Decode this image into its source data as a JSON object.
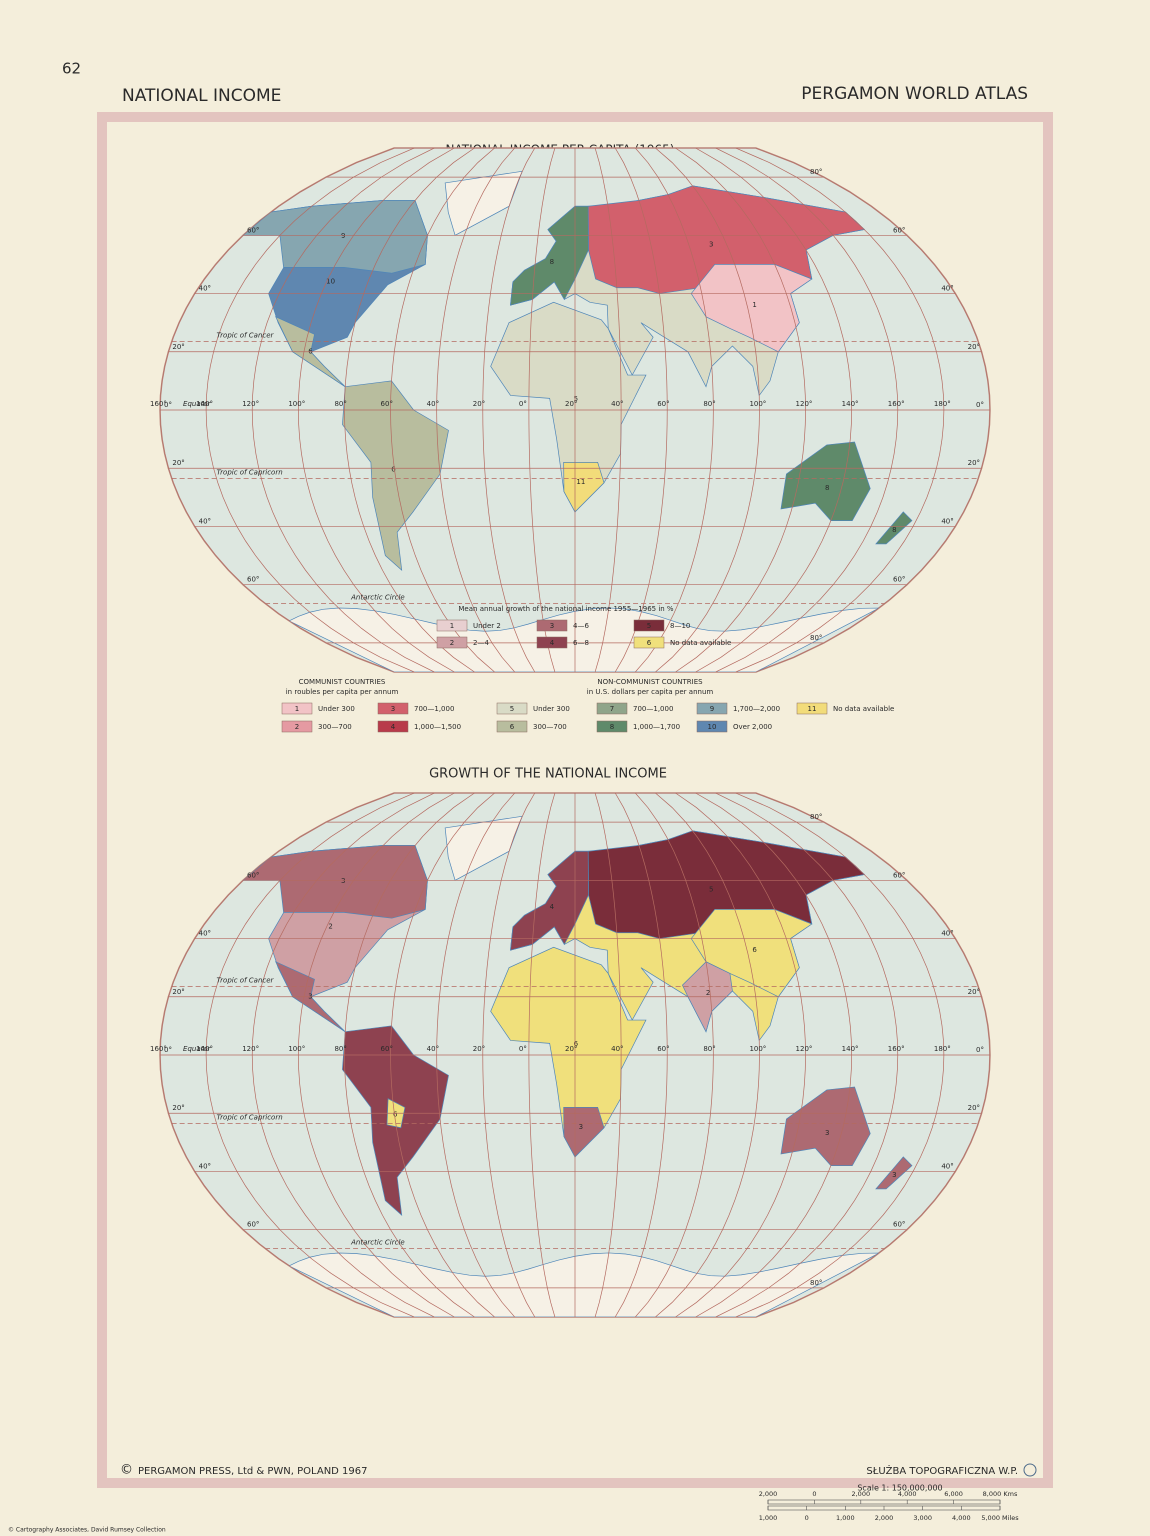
{
  "header": {
    "page_number": "62",
    "left_title": "NATIONAL INCOME",
    "right_title": "PERGAMON WORLD ATLAS"
  },
  "graticule": {
    "lat_labels": [
      "80°",
      "60°",
      "40°",
      "20°",
      "0°",
      "20°",
      "40°",
      "60°",
      "80°"
    ],
    "lon_labels": [
      "160°",
      "140°",
      "120°",
      "100°",
      "80°",
      "60°",
      "40°",
      "20°",
      "0°",
      "20°",
      "40°",
      "60°",
      "80°",
      "100°",
      "120°",
      "140°",
      "160°",
      "180°"
    ],
    "tropic_of_cancer": "Tropic of Cancer",
    "equator": "Equator",
    "tropic_of_capricorn": "Tropic of Capricorn",
    "antarctic_circle": "Antarctic Circle"
  },
  "maps": [
    {
      "title": "NATIONAL INCOME PER CAPITA (1965)",
      "legend": {
        "groups": [
          {
            "heading": "COMMUNIST COUNTRIES",
            "unit": "in roubles per capita per annum"
          },
          {
            "heading": "NON-COMMUNIST COUNTRIES",
            "unit": "in U.S. dollars per capita per annum"
          }
        ],
        "items": [
          {
            "key": "1",
            "label": "Under 300",
            "color": "#f2c3c6"
          },
          {
            "key": "2",
            "label": "300—700",
            "color": "#e59aa2"
          },
          {
            "key": "3",
            "label": "700—1,000",
            "color": "#d2606c"
          },
          {
            "key": "4",
            "label": "1,000—1,500",
            "color": "#b83a4a"
          },
          {
            "key": "5",
            "label": "Under 300",
            "color": "#d9dbc6"
          },
          {
            "key": "6",
            "label": "300—700",
            "color": "#b8bd9e"
          },
          {
            "key": "7",
            "label": "700—1,000",
            "color": "#8fa58a"
          },
          {
            "key": "8",
            "label": "1,000—1,700",
            "color": "#5f8a6a"
          },
          {
            "key": "9",
            "label": "1,700—2,000",
            "color": "#86a6b0"
          },
          {
            "key": "10",
            "label": "Over 2,000",
            "color": "#5f87b0"
          },
          {
            "key": "11",
            "label": "No data available",
            "color": "#f2dc7a"
          }
        ]
      }
    },
    {
      "title": "GROWTH OF THE NATIONAL INCOME",
      "legend": {
        "heading": "Mean annual growth of the national income 1955—1965 in %",
        "items": [
          {
            "key": "1",
            "label": "Under 2",
            "color": "#e8cfd0"
          },
          {
            "key": "2",
            "label": "2—4",
            "color": "#cfa0a4"
          },
          {
            "key": "3",
            "label": "4—6",
            "color": "#ad6a72"
          },
          {
            "key": "4",
            "label": "6—8",
            "color": "#8e4250"
          },
          {
            "key": "5",
            "label": "8—10",
            "color": "#7a2d3a"
          },
          {
            "key": "6",
            "label": "No data available",
            "color": "#f0e07c"
          }
        ]
      }
    }
  ],
  "footer": {
    "publisher": "PERGAMON PRESS, Ltd & PWN, POLAND 1967",
    "copyright_symbol": "©",
    "engraver": "SŁUŻBA TOPOGRAFICZNA W.P."
  },
  "scale": {
    "title": "Scale 1: 150,000,000",
    "km_labels": [
      "2,000",
      "0",
      "2,000",
      "4,000",
      "6,000",
      "8,000 Kms"
    ],
    "mile_labels": [
      "1,000",
      "0",
      "1,000",
      "2,000",
      "3,000",
      "4,000",
      "5,000 Miles"
    ]
  },
  "credit": "© Cartography Associates, David Rumsey Collection"
}
